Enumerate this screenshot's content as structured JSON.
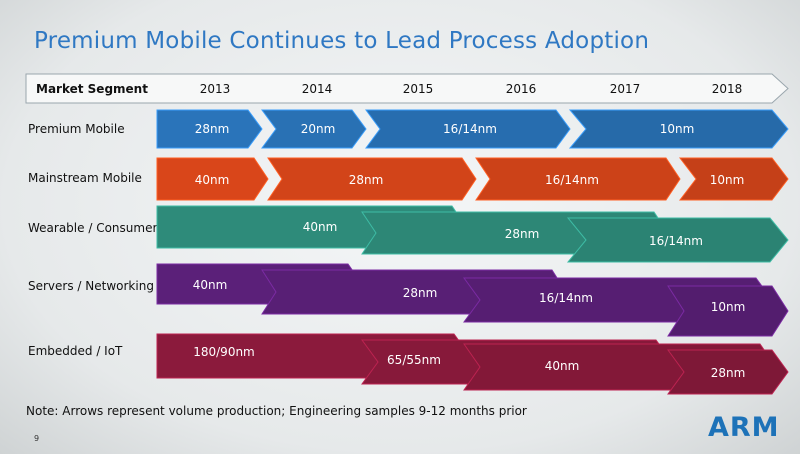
{
  "title": "Premium Mobile Continues to Lead Process Adoption",
  "header": {
    "label": "Market Segment",
    "years": [
      "2013",
      "2014",
      "2015",
      "2016",
      "2017",
      "2018"
    ]
  },
  "rows": [
    {
      "label": "Premium Mobile",
      "color": "#2a74ba",
      "arrows": [
        {
          "text": "28nm"
        },
        {
          "text": "20nm"
        },
        {
          "text": "16/14nm"
        },
        {
          "text": "10nm"
        }
      ]
    },
    {
      "label": "Mainstream Mobile",
      "color": "#d9461a",
      "arrows": [
        {
          "text": "40nm"
        },
        {
          "text": "28nm"
        },
        {
          "text": "16/14nm"
        },
        {
          "text": "10nm"
        }
      ]
    },
    {
      "label": "Wearable / Consumer",
      "color": "#2e8b7a",
      "arrows": [
        {
          "text": "40nm"
        },
        {
          "text": "28nm"
        },
        {
          "text": "16/14nm"
        }
      ]
    },
    {
      "label": "Servers / Networking",
      "color": "#5b2079",
      "arrows": [
        {
          "text": "40nm"
        },
        {
          "text": "28nm"
        },
        {
          "text": "16/14nm"
        },
        {
          "text": "10nm"
        }
      ]
    },
    {
      "label": "Embedded / IoT",
      "color": "#8b1a3c",
      "arrows": [
        {
          "text": "180/90nm"
        },
        {
          "text": "65/55nm"
        },
        {
          "text": "40nm"
        },
        {
          "text": "28nm"
        }
      ]
    }
  ],
  "note": "Note: Arrows represent volume production; Engineering samples 9-12 months prior",
  "page_number": "9",
  "logo": "ARM"
}
